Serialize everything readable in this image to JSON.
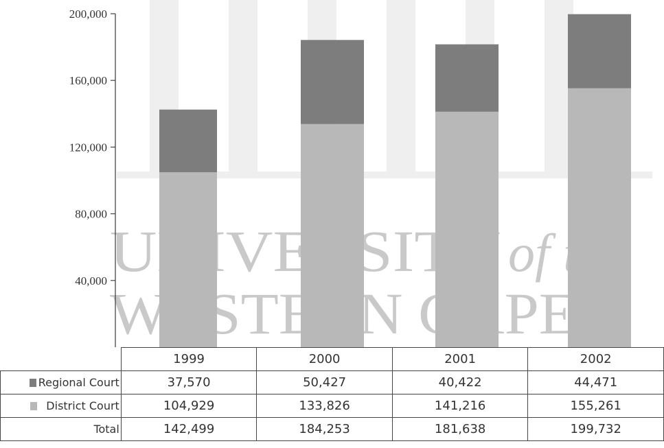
{
  "watermark": {
    "line1": "UNIVERSITY",
    "line1_suffix": "of the",
    "line2": "WESTERN CAPE"
  },
  "chart_data": {
    "type": "bar",
    "stacked": true,
    "categories": [
      "1999",
      "2000",
      "2001",
      "2002"
    ],
    "series": [
      {
        "name": "District Court",
        "values": [
          104929,
          133826,
          141216,
          155261
        ],
        "color": "#b8b8b8"
      },
      {
        "name": "Regional Court",
        "values": [
          37570,
          50427,
          40422,
          44471
        ],
        "color": "#7d7d7d"
      }
    ],
    "totals": {
      "name": "Total",
      "values": [
        142499,
        184253,
        181638,
        199732
      ]
    },
    "ylim": [
      0,
      200000
    ],
    "yticks": [
      "200,000",
      "160,000",
      "120,000",
      "80,000",
      "40,000"
    ],
    "ytick_values": [
      200000,
      160000,
      120000,
      80000,
      40000
    ],
    "title": "",
    "xlabel": "",
    "ylabel": ""
  },
  "table": {
    "years": [
      "1999",
      "2000",
      "2001",
      "2002"
    ],
    "rows": [
      {
        "label": "Regional Court",
        "values": [
          "37,570",
          "50,427",
          "40,422",
          "44,471"
        ],
        "swatch": "#7d7d7d"
      },
      {
        "label": "District Court",
        "values": [
          "104,929",
          "133,826",
          "141,216",
          "155,261"
        ],
        "swatch": "#b8b8b8"
      },
      {
        "label": "Total",
        "values": [
          "142,499",
          "184,253",
          "181,638",
          "199,732"
        ]
      }
    ]
  }
}
